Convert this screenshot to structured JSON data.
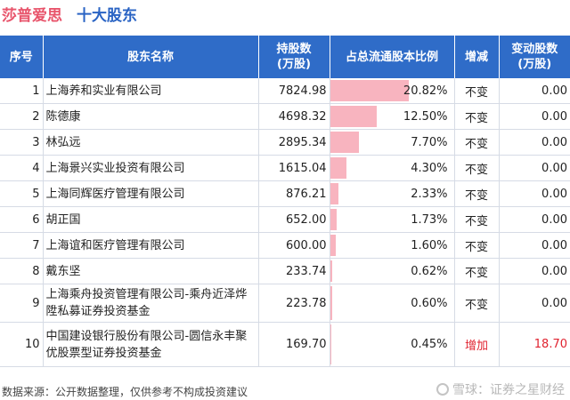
{
  "header": {
    "company": "莎普爱思",
    "subtitle": "十大股东"
  },
  "columns": {
    "rank": "序号",
    "name": "股东名称",
    "shares": "持股数\n(万股)",
    "pct": "占总流通股本比例",
    "change": "增减",
    "delta": "变动股数\n(万股)"
  },
  "chart_data": {
    "type": "table",
    "rows": [
      {
        "rank": "1",
        "name": "上海养和实业有限公司",
        "shares": "7824.98",
        "pct_label": "20.82%",
        "pct": 20.82,
        "change": "不变",
        "delta": "0.00"
      },
      {
        "rank": "2",
        "name": "陈德康",
        "shares": "4698.32",
        "pct_label": "12.50%",
        "pct": 12.5,
        "change": "不变",
        "delta": "0.00"
      },
      {
        "rank": "3",
        "name": "林弘远",
        "shares": "2895.34",
        "pct_label": "7.70%",
        "pct": 7.7,
        "change": "不变",
        "delta": "0.00"
      },
      {
        "rank": "4",
        "name": "上海景兴实业投资有限公司",
        "shares": "1615.04",
        "pct_label": "4.30%",
        "pct": 4.3,
        "change": "不变",
        "delta": "0.00"
      },
      {
        "rank": "5",
        "name": "上海同辉医疗管理有限公司",
        "shares": "876.21",
        "pct_label": "2.33%",
        "pct": 2.33,
        "change": "不变",
        "delta": "0.00"
      },
      {
        "rank": "6",
        "name": "胡正国",
        "shares": "652.00",
        "pct_label": "1.73%",
        "pct": 1.73,
        "change": "不变",
        "delta": "0.00"
      },
      {
        "rank": "7",
        "name": "上海谊和医疗管理有限公司",
        "shares": "600.00",
        "pct_label": "1.60%",
        "pct": 1.6,
        "change": "不变",
        "delta": "0.00"
      },
      {
        "rank": "8",
        "name": "戴东坚",
        "shares": "233.74",
        "pct_label": "0.62%",
        "pct": 0.62,
        "change": "不变",
        "delta": "0.00"
      },
      {
        "rank": "9",
        "name": "上海乘舟投资管理有限公司-乘舟近泽烨陞私募证券投资基金",
        "shares": "223.78",
        "pct_label": "0.60%",
        "pct": 0.6,
        "change": "不变",
        "delta": "0.00"
      },
      {
        "rank": "10",
        "name": "中国建设银行股份有限公司-圆信永丰聚优股票型证券投资基金",
        "shares": "169.70",
        "pct_label": "0.45%",
        "pct": 0.45,
        "change": "增加",
        "delta": "18.70"
      }
    ]
  },
  "colors": {
    "header_bg": "#2f6cc8",
    "bar": "#f8b4bf",
    "increase": "#e0222f",
    "company_title": "#e8546b",
    "subtitle": "#2a64c4"
  },
  "footer": {
    "source": "数据来源：公开数据整理，仅供参考不构成投资建议"
  },
  "watermark": {
    "text": "雪球：证券之星财经"
  }
}
